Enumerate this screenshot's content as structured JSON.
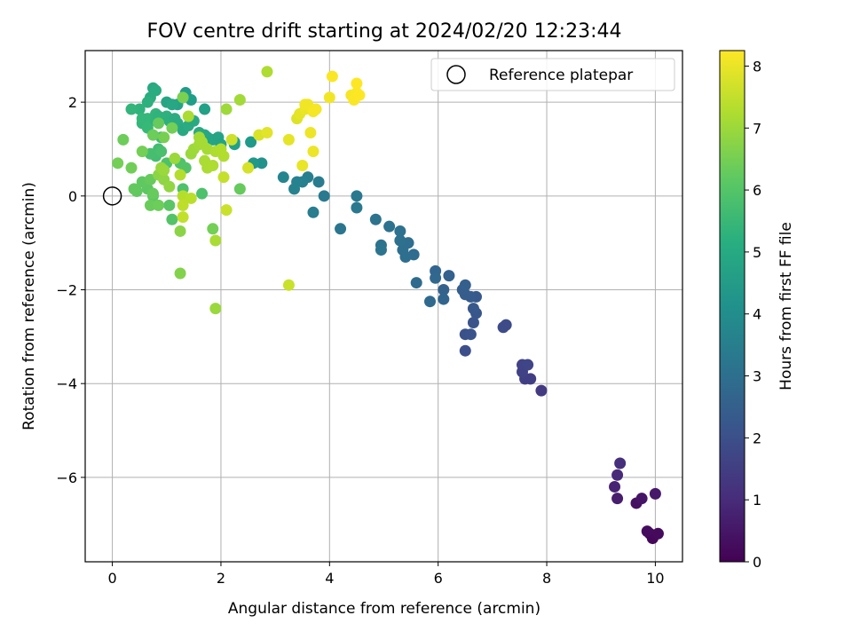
{
  "chart_data": {
    "type": "scatter",
    "title": "FOV centre drift starting at 2024/02/20 12:23:44",
    "xlabel": "Angular distance from reference (arcmin)",
    "ylabel": "Rotation from reference (arcmin)",
    "xlim": [
      -0.5,
      10.5
    ],
    "ylim": [
      -7.8,
      3.1
    ],
    "xticks": [
      0,
      2,
      4,
      6,
      8,
      10
    ],
    "xtick_labels": [
      "0",
      "2",
      "4",
      "6",
      "8",
      "10"
    ],
    "yticks": [
      -6,
      -4,
      -2,
      0,
      2
    ],
    "ytick_labels": [
      "−6",
      "−4",
      "−2",
      "0",
      "2"
    ],
    "grid": true,
    "legend": {
      "position": "top-right",
      "entries": [
        "Reference platepar"
      ]
    },
    "reference_point": {
      "x": 0,
      "y": 0,
      "label": "Reference platepar"
    },
    "colorbar": {
      "label": "Hours from first FF file",
      "range": [
        0,
        8.25
      ],
      "ticks": [
        0,
        1,
        2,
        3,
        4,
        5,
        6,
        7,
        8
      ],
      "tick_labels": [
        "0",
        "1",
        "2",
        "3",
        "4",
        "5",
        "6",
        "7",
        "8"
      ],
      "colormap": "viridis"
    },
    "points": [
      {
        "x": 9.9,
        "y": -7.2,
        "c": 0.1
      },
      {
        "x": 9.95,
        "y": -7.3,
        "c": 0.15
      },
      {
        "x": 10.05,
        "y": -7.2,
        "c": 0.2
      },
      {
        "x": 9.85,
        "y": -7.15,
        "c": 0.25
      },
      {
        "x": 9.65,
        "y": -6.55,
        "c": 0.35
      },
      {
        "x": 9.75,
        "y": -6.45,
        "c": 0.45
      },
      {
        "x": 10.0,
        "y": -6.35,
        "c": 0.55
      },
      {
        "x": 9.3,
        "y": -6.45,
        "c": 0.65
      },
      {
        "x": 9.25,
        "y": -6.2,
        "c": 0.8
      },
      {
        "x": 9.3,
        "y": -5.95,
        "c": 1.0
      },
      {
        "x": 9.35,
        "y": -5.7,
        "c": 1.1
      },
      {
        "x": 7.9,
        "y": -4.15,
        "c": 1.4
      },
      {
        "x": 7.7,
        "y": -3.9,
        "c": 1.5
      },
      {
        "x": 7.6,
        "y": -3.9,
        "c": 1.55
      },
      {
        "x": 7.55,
        "y": -3.75,
        "c": 1.6
      },
      {
        "x": 7.55,
        "y": -3.6,
        "c": 1.65
      },
      {
        "x": 7.65,
        "y": -3.6,
        "c": 1.7
      },
      {
        "x": 7.25,
        "y": -2.75,
        "c": 1.85
      },
      {
        "x": 7.2,
        "y": -2.8,
        "c": 1.9
      },
      {
        "x": 6.5,
        "y": -3.3,
        "c": 2.0
      },
      {
        "x": 6.5,
        "y": -2.95,
        "c": 2.05
      },
      {
        "x": 6.6,
        "y": -2.95,
        "c": 2.1
      },
      {
        "x": 6.65,
        "y": -2.7,
        "c": 2.15
      },
      {
        "x": 6.7,
        "y": -2.5,
        "c": 2.2
      },
      {
        "x": 6.65,
        "y": -2.4,
        "c": 2.25
      },
      {
        "x": 6.7,
        "y": -2.15,
        "c": 2.3
      },
      {
        "x": 6.6,
        "y": -2.15,
        "c": 2.35
      },
      {
        "x": 6.5,
        "y": -2.1,
        "c": 2.4
      },
      {
        "x": 6.45,
        "y": -2.0,
        "c": 2.45
      },
      {
        "x": 6.5,
        "y": -1.9,
        "c": 2.5
      },
      {
        "x": 6.2,
        "y": -1.7,
        "c": 2.55
      },
      {
        "x": 6.1,
        "y": -2.0,
        "c": 2.6
      },
      {
        "x": 6.1,
        "y": -2.2,
        "c": 2.65
      },
      {
        "x": 5.95,
        "y": -1.6,
        "c": 2.7
      },
      {
        "x": 5.95,
        "y": -1.75,
        "c": 2.75
      },
      {
        "x": 5.85,
        "y": -2.25,
        "c": 2.8
      },
      {
        "x": 5.6,
        "y": -1.85,
        "c": 2.85
      },
      {
        "x": 5.55,
        "y": -1.25,
        "c": 2.9
      },
      {
        "x": 5.45,
        "y": -1.0,
        "c": 2.95
      },
      {
        "x": 5.4,
        "y": -1.3,
        "c": 3.0
      },
      {
        "x": 5.35,
        "y": -1.15,
        "c": 3.0
      },
      {
        "x": 5.3,
        "y": -0.95,
        "c": 3.05
      },
      {
        "x": 5.3,
        "y": -0.75,
        "c": 3.1
      },
      {
        "x": 5.1,
        "y": -0.65,
        "c": 3.1
      },
      {
        "x": 4.85,
        "y": -0.5,
        "c": 3.15
      },
      {
        "x": 4.95,
        "y": -1.05,
        "c": 3.15
      },
      {
        "x": 4.95,
        "y": -1.15,
        "c": 3.2
      },
      {
        "x": 4.2,
        "y": -0.7,
        "c": 3.25
      },
      {
        "x": 4.5,
        "y": 0.0,
        "c": 3.3
      },
      {
        "x": 4.5,
        "y": -0.25,
        "c": 3.35
      },
      {
        "x": 3.9,
        "y": 0.0,
        "c": 3.4
      },
      {
        "x": 3.8,
        "y": 0.3,
        "c": 3.45
      },
      {
        "x": 3.7,
        "y": -0.35,
        "c": 3.5
      },
      {
        "x": 3.6,
        "y": 0.4,
        "c": 3.55
      },
      {
        "x": 3.5,
        "y": 0.3,
        "c": 3.6
      },
      {
        "x": 3.4,
        "y": 0.3,
        "c": 3.65
      },
      {
        "x": 3.35,
        "y": 0.15,
        "c": 3.7
      },
      {
        "x": 3.15,
        "y": 0.4,
        "c": 3.75
      },
      {
        "x": 2.75,
        "y": 0.7,
        "c": 4.2
      },
      {
        "x": 2.6,
        "y": 0.7,
        "c": 4.4
      },
      {
        "x": 2.55,
        "y": 1.15,
        "c": 4.5
      },
      {
        "x": 3.25,
        "y": -1.9,
        "c": 7.6
      },
      {
        "x": 1.35,
        "y": 2.2,
        "c": 4.5
      },
      {
        "x": 1.45,
        "y": 2.05,
        "c": 4.6
      },
      {
        "x": 1.3,
        "y": 2.1,
        "c": 4.7
      },
      {
        "x": 1.7,
        "y": 1.85,
        "c": 4.7
      },
      {
        "x": 2.25,
        "y": 1.15,
        "c": 4.6
      },
      {
        "x": 2.25,
        "y": 1.1,
        "c": 4.7
      },
      {
        "x": 1.2,
        "y": 1.95,
        "c": 4.8
      },
      {
        "x": 1.0,
        "y": 2.0,
        "c": 4.85
      },
      {
        "x": 1.1,
        "y": 1.95,
        "c": 4.9
      },
      {
        "x": 0.75,
        "y": 2.3,
        "c": 5.0
      },
      {
        "x": 0.8,
        "y": 2.25,
        "c": 5.05
      },
      {
        "x": 0.7,
        "y": 2.1,
        "c": 5.1
      },
      {
        "x": 0.65,
        "y": 2.0,
        "c": 5.2
      },
      {
        "x": 0.5,
        "y": 1.85,
        "c": 5.3
      },
      {
        "x": 0.35,
        "y": 1.85,
        "c": 5.4
      },
      {
        "x": 0.55,
        "y": 1.55,
        "c": 5.45
      },
      {
        "x": 0.55,
        "y": 1.65,
        "c": 5.5
      },
      {
        "x": 0.65,
        "y": 1.65,
        "c": 5.5
      },
      {
        "x": 0.65,
        "y": 1.45,
        "c": 5.55
      },
      {
        "x": 0.8,
        "y": 1.75,
        "c": 5.4
      },
      {
        "x": 0.8,
        "y": 1.6,
        "c": 5.35
      },
      {
        "x": 0.85,
        "y": 1.7,
        "c": 5.3
      },
      {
        "x": 1.0,
        "y": 1.7,
        "c": 5.25
      },
      {
        "x": 1.05,
        "y": 1.6,
        "c": 5.2
      },
      {
        "x": 1.15,
        "y": 1.65,
        "c": 5.15
      },
      {
        "x": 1.2,
        "y": 1.55,
        "c": 5.1
      },
      {
        "x": 1.3,
        "y": 1.4,
        "c": 5.0
      },
      {
        "x": 1.4,
        "y": 1.5,
        "c": 5.05
      },
      {
        "x": 1.5,
        "y": 1.6,
        "c": 5.0
      },
      {
        "x": 1.6,
        "y": 1.35,
        "c": 5.0
      },
      {
        "x": 1.7,
        "y": 1.3,
        "c": 4.95
      },
      {
        "x": 1.75,
        "y": 1.25,
        "c": 4.9
      },
      {
        "x": 1.85,
        "y": 1.2,
        "c": 4.85
      },
      {
        "x": 1.95,
        "y": 1.25,
        "c": 4.8
      },
      {
        "x": 2.0,
        "y": 1.1,
        "c": 4.75
      },
      {
        "x": 0.9,
        "y": 1.25,
        "c": 5.6
      },
      {
        "x": 0.85,
        "y": 1.0,
        "c": 5.7
      },
      {
        "x": 0.8,
        "y": 0.85,
        "c": 5.75
      },
      {
        "x": 0.7,
        "y": 0.9,
        "c": 5.8
      },
      {
        "x": 0.9,
        "y": 0.95,
        "c": 5.85
      },
      {
        "x": 1.0,
        "y": 0.7,
        "c": 5.9
      },
      {
        "x": 1.25,
        "y": 0.7,
        "c": 5.95
      },
      {
        "x": 1.35,
        "y": 0.6,
        "c": 6.0
      },
      {
        "x": 1.3,
        "y": 0.15,
        "c": 5.9
      },
      {
        "x": 1.1,
        "y": -0.5,
        "c": 6.0
      },
      {
        "x": 1.05,
        "y": -0.2,
        "c": 6.1
      },
      {
        "x": 0.75,
        "y": 0.0,
        "c": 6.1
      },
      {
        "x": 0.65,
        "y": 0.15,
        "c": 6.15
      },
      {
        "x": 0.55,
        "y": 0.3,
        "c": 6.2
      },
      {
        "x": 0.45,
        "y": 0.1,
        "c": 6.2
      },
      {
        "x": 0.4,
        "y": 0.15,
        "c": 6.25
      },
      {
        "x": 0.7,
        "y": 0.35,
        "c": 6.3
      },
      {
        "x": 0.75,
        "y": 0.05,
        "c": 6.3
      },
      {
        "x": 0.7,
        "y": -0.2,
        "c": 6.35
      },
      {
        "x": 0.85,
        "y": -0.2,
        "c": 6.4
      },
      {
        "x": 1.65,
        "y": 0.05,
        "c": 5.9
      },
      {
        "x": 0.2,
        "y": 1.2,
        "c": 6.4
      },
      {
        "x": 0.35,
        "y": 0.6,
        "c": 6.45
      },
      {
        "x": 0.1,
        "y": 0.7,
        "c": 6.5
      },
      {
        "x": 0.55,
        "y": 0.95,
        "c": 6.5
      },
      {
        "x": 0.75,
        "y": 1.3,
        "c": 6.4
      },
      {
        "x": 0.85,
        "y": 1.55,
        "c": 6.3
      },
      {
        "x": 0.95,
        "y": 1.25,
        "c": 6.55
      },
      {
        "x": 1.1,
        "y": 1.45,
        "c": 6.5
      },
      {
        "x": 1.3,
        "y": 2.1,
        "c": 6.6
      },
      {
        "x": 1.85,
        "y": -0.7,
        "c": 6.5
      },
      {
        "x": 2.35,
        "y": 0.15,
        "c": 6.3
      },
      {
        "x": 1.25,
        "y": -1.65,
        "c": 6.7
      },
      {
        "x": 1.25,
        "y": -0.75,
        "c": 6.8
      },
      {
        "x": 0.85,
        "y": 0.45,
        "c": 6.8
      },
      {
        "x": 0.95,
        "y": 0.35,
        "c": 6.85
      },
      {
        "x": 1.05,
        "y": 0.2,
        "c": 6.9
      },
      {
        "x": 0.9,
        "y": 0.6,
        "c": 6.95
      },
      {
        "x": 0.95,
        "y": 0.55,
        "c": 7.0
      },
      {
        "x": 1.15,
        "y": 0.8,
        "c": 7.0
      },
      {
        "x": 1.45,
        "y": 0.9,
        "c": 7.0
      },
      {
        "x": 1.5,
        "y": 1.0,
        "c": 7.05
      },
      {
        "x": 1.6,
        "y": 1.1,
        "c": 7.1
      },
      {
        "x": 1.6,
        "y": 1.25,
        "c": 7.1
      },
      {
        "x": 1.65,
        "y": 1.15,
        "c": 7.15
      },
      {
        "x": 1.75,
        "y": 1.0,
        "c": 7.15
      },
      {
        "x": 1.7,
        "y": 0.75,
        "c": 7.2
      },
      {
        "x": 1.75,
        "y": 0.6,
        "c": 7.2
      },
      {
        "x": 1.85,
        "y": 0.65,
        "c": 7.25
      },
      {
        "x": 1.9,
        "y": 0.95,
        "c": 7.25
      },
      {
        "x": 2.0,
        "y": 1.0,
        "c": 7.3
      },
      {
        "x": 2.05,
        "y": 0.85,
        "c": 7.3
      },
      {
        "x": 1.4,
        "y": 1.7,
        "c": 7.2
      },
      {
        "x": 1.25,
        "y": 0.45,
        "c": 7.35
      },
      {
        "x": 1.3,
        "y": 0.0,
        "c": 7.35
      },
      {
        "x": 1.45,
        "y": -0.05,
        "c": 7.4
      },
      {
        "x": 1.3,
        "y": -0.2,
        "c": 7.45
      },
      {
        "x": 1.3,
        "y": -0.45,
        "c": 7.5
      },
      {
        "x": 1.9,
        "y": -0.95,
        "c": 7.2
      },
      {
        "x": 1.9,
        "y": -2.4,
        "c": 7.0
      },
      {
        "x": 2.1,
        "y": 1.85,
        "c": 7.05
      },
      {
        "x": 2.35,
        "y": 2.05,
        "c": 7.1
      },
      {
        "x": 2.85,
        "y": 2.65,
        "c": 7.25
      },
      {
        "x": 2.05,
        "y": 0.4,
        "c": 7.55
      },
      {
        "x": 2.1,
        "y": -0.3,
        "c": 7.6
      },
      {
        "x": 2.2,
        "y": 1.2,
        "c": 7.65
      },
      {
        "x": 2.5,
        "y": 0.6,
        "c": 7.75
      },
      {
        "x": 2.7,
        "y": 1.3,
        "c": 7.8
      },
      {
        "x": 2.85,
        "y": 1.35,
        "c": 7.9
      },
      {
        "x": 3.25,
        "y": 1.2,
        "c": 7.95
      },
      {
        "x": 3.4,
        "y": 1.65,
        "c": 7.85
      },
      {
        "x": 3.45,
        "y": 1.75,
        "c": 7.95
      },
      {
        "x": 3.55,
        "y": 1.85,
        "c": 8.0
      },
      {
        "x": 3.5,
        "y": 0.65,
        "c": 8.0
      },
      {
        "x": 3.7,
        "y": 0.95,
        "c": 8.05
      },
      {
        "x": 3.65,
        "y": 1.35,
        "c": 8.05
      },
      {
        "x": 3.55,
        "y": 1.95,
        "c": 8.1
      },
      {
        "x": 3.6,
        "y": 1.95,
        "c": 8.1
      },
      {
        "x": 3.7,
        "y": 1.8,
        "c": 8.15
      },
      {
        "x": 3.75,
        "y": 1.85,
        "c": 8.15
      },
      {
        "x": 4.0,
        "y": 2.1,
        "c": 8.1
      },
      {
        "x": 4.05,
        "y": 2.55,
        "c": 8.2
      },
      {
        "x": 4.4,
        "y": 2.15,
        "c": 8.15
      },
      {
        "x": 4.45,
        "y": 2.05,
        "c": 8.2
      },
      {
        "x": 4.5,
        "y": 2.2,
        "c": 8.2
      },
      {
        "x": 4.55,
        "y": 2.15,
        "c": 8.25
      },
      {
        "x": 4.5,
        "y": 2.4,
        "c": 8.25
      }
    ]
  }
}
